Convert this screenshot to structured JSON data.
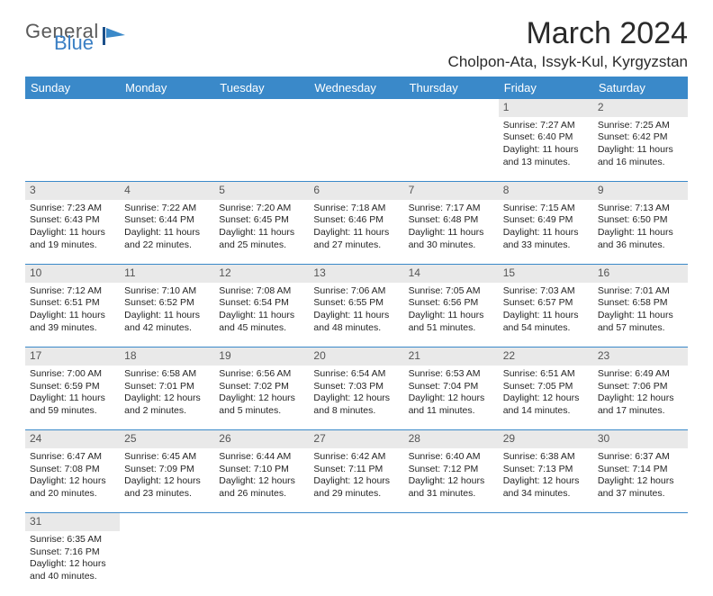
{
  "logo": {
    "general": "General",
    "blue": "Blue"
  },
  "title": "March 2024",
  "location": "Cholpon-Ata, Issyk-Kul, Kyrgyzstan",
  "colors": {
    "header_bg": "#3a89c9",
    "header_fg": "#ffffff",
    "daynum_bg": "#e9e9e9",
    "border": "#3a89c9"
  },
  "daysOfWeek": [
    "Sunday",
    "Monday",
    "Tuesday",
    "Wednesday",
    "Thursday",
    "Friday",
    "Saturday"
  ],
  "weeks": [
    {
      "nums": [
        "",
        "",
        "",
        "",
        "",
        "1",
        "2"
      ],
      "cells": [
        null,
        null,
        null,
        null,
        null,
        {
          "sr": "Sunrise: 7:27 AM",
          "ss": "Sunset: 6:40 PM",
          "dl1": "Daylight: 11 hours",
          "dl2": "and 13 minutes."
        },
        {
          "sr": "Sunrise: 7:25 AM",
          "ss": "Sunset: 6:42 PM",
          "dl1": "Daylight: 11 hours",
          "dl2": "and 16 minutes."
        }
      ]
    },
    {
      "nums": [
        "3",
        "4",
        "5",
        "6",
        "7",
        "8",
        "9"
      ],
      "cells": [
        {
          "sr": "Sunrise: 7:23 AM",
          "ss": "Sunset: 6:43 PM",
          "dl1": "Daylight: 11 hours",
          "dl2": "and 19 minutes."
        },
        {
          "sr": "Sunrise: 7:22 AM",
          "ss": "Sunset: 6:44 PM",
          "dl1": "Daylight: 11 hours",
          "dl2": "and 22 minutes."
        },
        {
          "sr": "Sunrise: 7:20 AM",
          "ss": "Sunset: 6:45 PM",
          "dl1": "Daylight: 11 hours",
          "dl2": "and 25 minutes."
        },
        {
          "sr": "Sunrise: 7:18 AM",
          "ss": "Sunset: 6:46 PM",
          "dl1": "Daylight: 11 hours",
          "dl2": "and 27 minutes."
        },
        {
          "sr": "Sunrise: 7:17 AM",
          "ss": "Sunset: 6:48 PM",
          "dl1": "Daylight: 11 hours",
          "dl2": "and 30 minutes."
        },
        {
          "sr": "Sunrise: 7:15 AM",
          "ss": "Sunset: 6:49 PM",
          "dl1": "Daylight: 11 hours",
          "dl2": "and 33 minutes."
        },
        {
          "sr": "Sunrise: 7:13 AM",
          "ss": "Sunset: 6:50 PM",
          "dl1": "Daylight: 11 hours",
          "dl2": "and 36 minutes."
        }
      ]
    },
    {
      "nums": [
        "10",
        "11",
        "12",
        "13",
        "14",
        "15",
        "16"
      ],
      "cells": [
        {
          "sr": "Sunrise: 7:12 AM",
          "ss": "Sunset: 6:51 PM",
          "dl1": "Daylight: 11 hours",
          "dl2": "and 39 minutes."
        },
        {
          "sr": "Sunrise: 7:10 AM",
          "ss": "Sunset: 6:52 PM",
          "dl1": "Daylight: 11 hours",
          "dl2": "and 42 minutes."
        },
        {
          "sr": "Sunrise: 7:08 AM",
          "ss": "Sunset: 6:54 PM",
          "dl1": "Daylight: 11 hours",
          "dl2": "and 45 minutes."
        },
        {
          "sr": "Sunrise: 7:06 AM",
          "ss": "Sunset: 6:55 PM",
          "dl1": "Daylight: 11 hours",
          "dl2": "and 48 minutes."
        },
        {
          "sr": "Sunrise: 7:05 AM",
          "ss": "Sunset: 6:56 PM",
          "dl1": "Daylight: 11 hours",
          "dl2": "and 51 minutes."
        },
        {
          "sr": "Sunrise: 7:03 AM",
          "ss": "Sunset: 6:57 PM",
          "dl1": "Daylight: 11 hours",
          "dl2": "and 54 minutes."
        },
        {
          "sr": "Sunrise: 7:01 AM",
          "ss": "Sunset: 6:58 PM",
          "dl1": "Daylight: 11 hours",
          "dl2": "and 57 minutes."
        }
      ]
    },
    {
      "nums": [
        "17",
        "18",
        "19",
        "20",
        "21",
        "22",
        "23"
      ],
      "cells": [
        {
          "sr": "Sunrise: 7:00 AM",
          "ss": "Sunset: 6:59 PM",
          "dl1": "Daylight: 11 hours",
          "dl2": "and 59 minutes."
        },
        {
          "sr": "Sunrise: 6:58 AM",
          "ss": "Sunset: 7:01 PM",
          "dl1": "Daylight: 12 hours",
          "dl2": "and 2 minutes."
        },
        {
          "sr": "Sunrise: 6:56 AM",
          "ss": "Sunset: 7:02 PM",
          "dl1": "Daylight: 12 hours",
          "dl2": "and 5 minutes."
        },
        {
          "sr": "Sunrise: 6:54 AM",
          "ss": "Sunset: 7:03 PM",
          "dl1": "Daylight: 12 hours",
          "dl2": "and 8 minutes."
        },
        {
          "sr": "Sunrise: 6:53 AM",
          "ss": "Sunset: 7:04 PM",
          "dl1": "Daylight: 12 hours",
          "dl2": "and 11 minutes."
        },
        {
          "sr": "Sunrise: 6:51 AM",
          "ss": "Sunset: 7:05 PM",
          "dl1": "Daylight: 12 hours",
          "dl2": "and 14 minutes."
        },
        {
          "sr": "Sunrise: 6:49 AM",
          "ss": "Sunset: 7:06 PM",
          "dl1": "Daylight: 12 hours",
          "dl2": "and 17 minutes."
        }
      ]
    },
    {
      "nums": [
        "24",
        "25",
        "26",
        "27",
        "28",
        "29",
        "30"
      ],
      "cells": [
        {
          "sr": "Sunrise: 6:47 AM",
          "ss": "Sunset: 7:08 PM",
          "dl1": "Daylight: 12 hours",
          "dl2": "and 20 minutes."
        },
        {
          "sr": "Sunrise: 6:45 AM",
          "ss": "Sunset: 7:09 PM",
          "dl1": "Daylight: 12 hours",
          "dl2": "and 23 minutes."
        },
        {
          "sr": "Sunrise: 6:44 AM",
          "ss": "Sunset: 7:10 PM",
          "dl1": "Daylight: 12 hours",
          "dl2": "and 26 minutes."
        },
        {
          "sr": "Sunrise: 6:42 AM",
          "ss": "Sunset: 7:11 PM",
          "dl1": "Daylight: 12 hours",
          "dl2": "and 29 minutes."
        },
        {
          "sr": "Sunrise: 6:40 AM",
          "ss": "Sunset: 7:12 PM",
          "dl1": "Daylight: 12 hours",
          "dl2": "and 31 minutes."
        },
        {
          "sr": "Sunrise: 6:38 AM",
          "ss": "Sunset: 7:13 PM",
          "dl1": "Daylight: 12 hours",
          "dl2": "and 34 minutes."
        },
        {
          "sr": "Sunrise: 6:37 AM",
          "ss": "Sunset: 7:14 PM",
          "dl1": "Daylight: 12 hours",
          "dl2": "and 37 minutes."
        }
      ]
    },
    {
      "nums": [
        "31",
        "",
        "",
        "",
        "",
        "",
        ""
      ],
      "cells": [
        {
          "sr": "Sunrise: 6:35 AM",
          "ss": "Sunset: 7:16 PM",
          "dl1": "Daylight: 12 hours",
          "dl2": "and 40 minutes."
        },
        null,
        null,
        null,
        null,
        null,
        null
      ]
    }
  ]
}
